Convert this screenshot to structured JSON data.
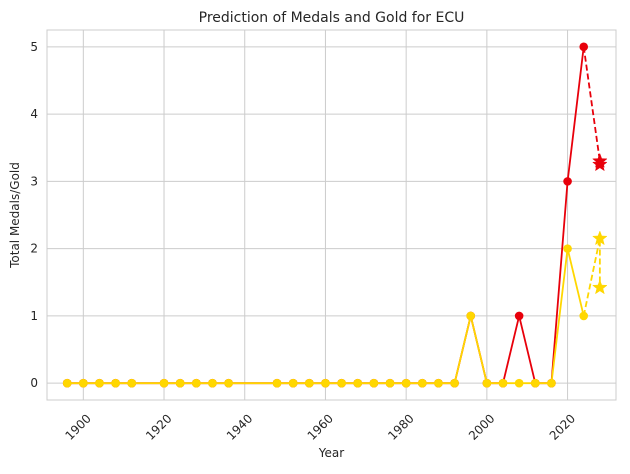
{
  "chart_data": {
    "type": "line",
    "title": "Prediction of Medals and Gold for ECU",
    "xlabel": "Year",
    "ylabel": "Total Medals/Gold",
    "xlim": [
      1891,
      2032
    ],
    "ylim": [
      -0.25,
      5.25
    ],
    "grid": true,
    "x_ticks": [
      1900,
      1920,
      1940,
      1960,
      1980,
      2000,
      2020
    ],
    "y_ticks": [
      0,
      1,
      2,
      3,
      4,
      5
    ],
    "colors": {
      "total": "#e8000b",
      "gold": "#ffd700"
    },
    "series": [
      {
        "key": "total",
        "style": "solid-circle",
        "x": [
          1896,
          1900,
          1904,
          1908,
          1912,
          1920,
          1924,
          1928,
          1932,
          1936,
          1948,
          1952,
          1956,
          1960,
          1964,
          1968,
          1972,
          1976,
          1980,
          1984,
          1988,
          1992,
          1996,
          2000,
          2004,
          2008,
          2012,
          2016,
          2020,
          2024
        ],
        "y": [
          0,
          0,
          0,
          0,
          0,
          0,
          0,
          0,
          0,
          0,
          0,
          0,
          0,
          0,
          0,
          0,
          0,
          0,
          0,
          0,
          0,
          0,
          1,
          0,
          0,
          1,
          0,
          0,
          3,
          5
        ]
      },
      {
        "key": "gold",
        "style": "solid-circle",
        "x": [
          1896,
          1900,
          1904,
          1908,
          1912,
          1920,
          1924,
          1928,
          1932,
          1936,
          1948,
          1952,
          1956,
          1960,
          1964,
          1968,
          1972,
          1976,
          1980,
          1984,
          1988,
          1992,
          1996,
          2000,
          2004,
          2008,
          2012,
          2016,
          2020,
          2024
        ],
        "y": [
          0,
          0,
          0,
          0,
          0,
          0,
          0,
          0,
          0,
          0,
          0,
          0,
          0,
          0,
          0,
          0,
          0,
          0,
          0,
          0,
          0,
          0,
          1,
          0,
          0,
          0,
          0,
          0,
          2,
          1
        ]
      },
      {
        "key": "total",
        "style": "dashed-star",
        "x": [
          2024,
          2028,
          2028
        ],
        "y": [
          5,
          3.3,
          3.25
        ]
      },
      {
        "key": "gold",
        "style": "dashed-star",
        "x": [
          2024,
          2028,
          2028
        ],
        "y": [
          1,
          2.15,
          1.42
        ]
      }
    ]
  }
}
